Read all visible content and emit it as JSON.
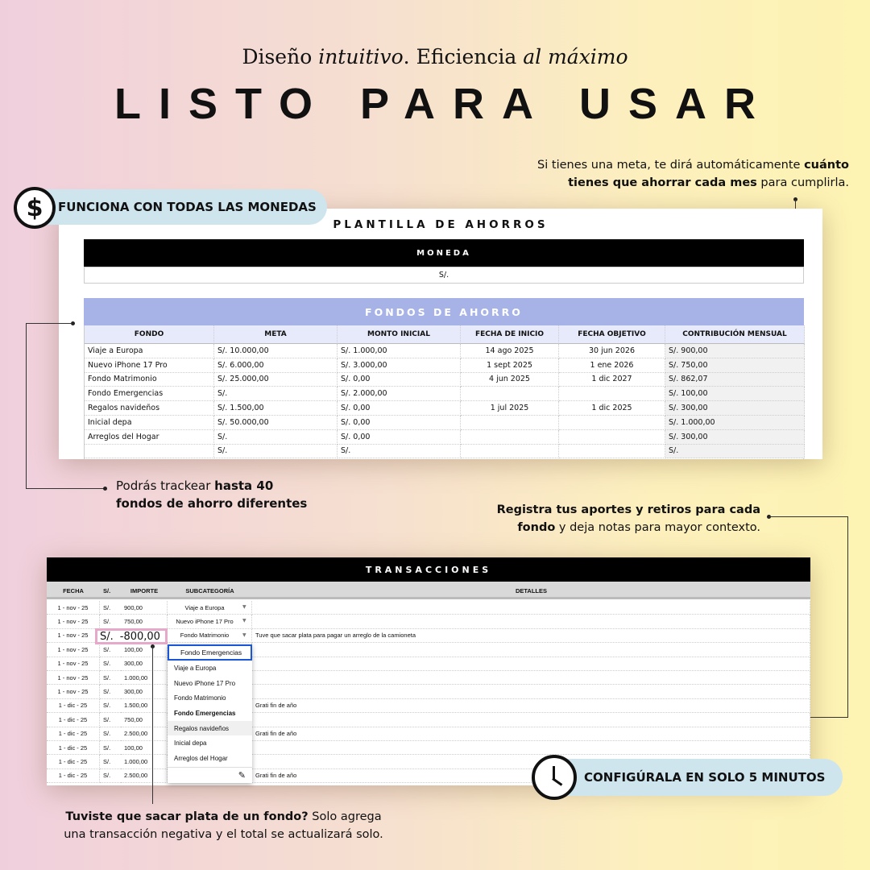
{
  "headline": {
    "pre": "Diseño ",
    "it1": "intuitivo",
    "mid": ". Eficiencia ",
    "it2": "al máximo",
    "title": "LISTO PARA USAR"
  },
  "badges": {
    "currency": "FUNCIONA CON TODAS LAS MONEDAS",
    "setup": "CONFIGÚRALA EN SOLO 5 MINUTOS"
  },
  "notes": {
    "goal": {
      "a": "Si tienes una meta, te dirá automáticamente ",
      "b": "cuánto",
      "c": "tienes que ahorrar cada mes",
      "d": " para cumplirla."
    },
    "funds": {
      "a": "Podrás trackear ",
      "b": "hasta 40",
      "c": "fondos de ahorro diferentes"
    },
    "register": {
      "a": "Registra tus aportes y retiros para cada",
      "b": "fondo",
      "c": " y deja notas para mayor contexto."
    },
    "withdraw": {
      "a": "Tuviste que sacar plata de un fondo?",
      "b": " Solo agrega",
      "c": "una transacción negativa y el total se actualizará solo."
    }
  },
  "savings": {
    "title": "PLANTILLA DE AHORROS",
    "currency_header": "MONEDA",
    "currency_value": "S/.",
    "funds_header": "FONDOS DE AHORRO",
    "columns": [
      "FONDO",
      "META",
      "MONTO INICIAL",
      "FECHA DE INICIO",
      "FECHA OBJETIVO",
      "CONTRIBUCIÓN MENSUAL"
    ],
    "rows": [
      [
        "Viaje a Europa",
        "S/.  10.000,00",
        "S/.  1.000,00",
        "14 ago 2025",
        "30 jun 2026",
        "S/.  900,00"
      ],
      [
        "Nuevo iPhone 17 Pro",
        "S/.  6.000,00",
        "S/.  3.000,00",
        "1 sept 2025",
        "1 ene 2026",
        "S/.  750,00"
      ],
      [
        "Fondo Matrimonio",
        "S/.  25.000,00",
        "S/.  0,00",
        "4 jun 2025",
        "1 dic 2027",
        "S/.  862,07"
      ],
      [
        "Fondo Emergencias",
        "S/.",
        "S/.  2.000,00",
        "",
        "",
        "S/.  100,00"
      ],
      [
        "Regalos navideños",
        "S/.  1.500,00",
        "S/.  0,00",
        "1 jul 2025",
        "1 dic 2025",
        "S/.  300,00"
      ],
      [
        "Inicial depa",
        "S/.  50.000,00",
        "S/.  0,00",
        "",
        "",
        "S/.  1.000,00"
      ],
      [
        "Arreglos del Hogar",
        "S/.",
        "S/.  0,00",
        "",
        "",
        "S/.  300,00"
      ],
      [
        "",
        "S/.",
        "S/.",
        "",
        "",
        "S/."
      ]
    ]
  },
  "transactions": {
    "title": "TRANSACCIONES",
    "columns": [
      "FECHA",
      "S/.",
      "IMPORTE",
      "SUBCATEGORÍA",
      "DETALLES"
    ],
    "rows": [
      [
        "1 - nov - 25",
        "S/.",
        "900,00",
        "Viaje a Europa",
        ""
      ],
      [
        "1 - nov - 25",
        "S/.",
        "750,00",
        "Nuevo iPhone 17 Pro",
        ""
      ],
      [
        "1 - nov - 25",
        "S/.",
        "-800,00",
        "Fondo Matrimonio",
        "Tuve que sacar plata para pagar un arreglo de la camioneta"
      ],
      [
        "1 - nov - 25",
        "S/.",
        "100,00",
        "",
        ""
      ],
      [
        "1 - nov - 25",
        "S/.",
        "300,00",
        "",
        ""
      ],
      [
        "1 - nov - 25",
        "S/.",
        "1.000,00",
        "",
        ""
      ],
      [
        "1 - nov - 25",
        "S/.",
        "300,00",
        "",
        ""
      ],
      [
        "1 - dic - 25",
        "S/.",
        "1.500,00",
        "",
        "Grati fin de año"
      ],
      [
        "1 - dic - 25",
        "S/.",
        "750,00",
        "",
        ""
      ],
      [
        "1 - dic - 25",
        "S/.",
        "2.500,00",
        "",
        "Grati fin de año"
      ],
      [
        "1 - dic - 25",
        "S/.",
        "100,00",
        "",
        ""
      ],
      [
        "1 - dic - 25",
        "S/.",
        "1.000,00",
        "",
        ""
      ],
      [
        "1 - dic - 25",
        "S/.",
        "2.500,00",
        "",
        "Grati fin de año"
      ]
    ],
    "editing": {
      "currency": "S/.",
      "value": "-800,00"
    },
    "dropdown": {
      "input": "Fondo Emergencias",
      "options": [
        "Viaje a Europa",
        "Nuevo iPhone 17 Pro",
        "Fondo Matrimonio",
        "Fondo Emergencias",
        "Regalos navideños",
        "Inicial depa",
        "Arreglos del Hogar"
      ],
      "highlighted": "Regalos navideños"
    }
  },
  "colors": {
    "funds_header": "#a7b3e6",
    "funds_colheader": "#e6eafa",
    "highlight": "#e7a9c9",
    "pill": "#cfe5ee",
    "focus": "#1a56d6"
  }
}
